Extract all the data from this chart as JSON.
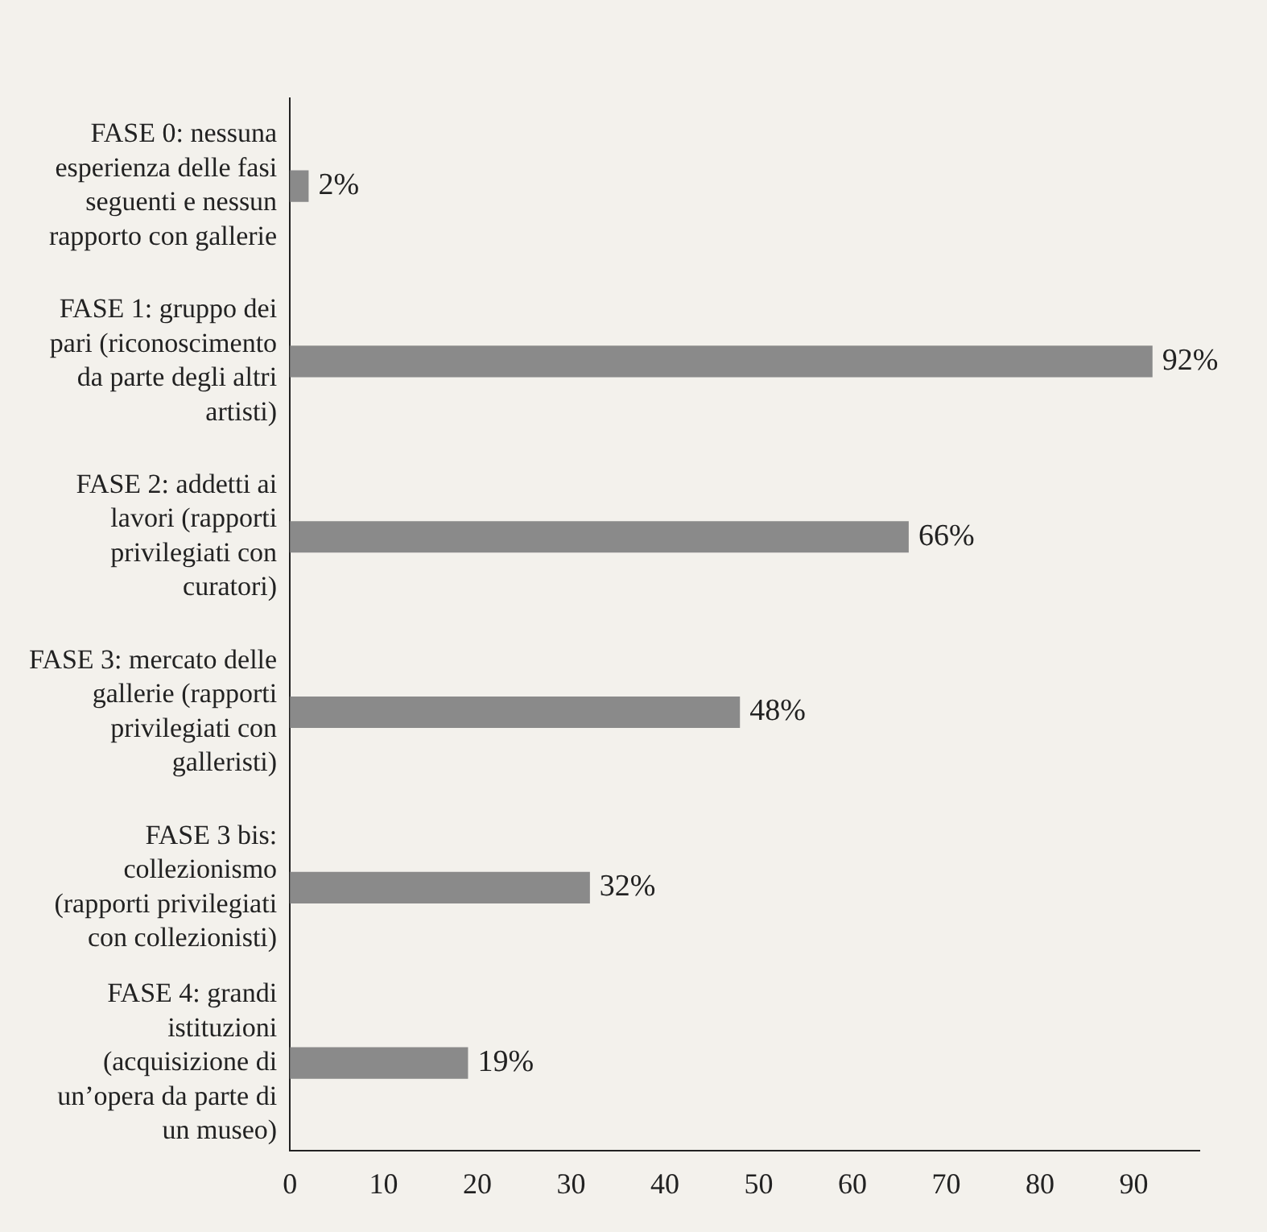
{
  "chart_data": {
    "type": "bar",
    "orientation": "horizontal",
    "categories": [
      "FASE 0: nessuna esperienza delle fasi seguenti e nessun rapporto con gallerie",
      "FASE 1: gruppo dei pari (riconoscimento da parte degli altri artisti)",
      "FASE 2: addetti ai lavori (rapporti privilegiati con curatori)",
      "FASE 3: mercato delle gallerie (rapporti privilegiati con galleristi)",
      "FASE 3 bis: collezionismo (rapporti privilegiati con collezionisti)",
      "FASE 4: grandi istituzioni (acquisizione di un’opera da parte di un museo)"
    ],
    "values": [
      2,
      92,
      66,
      48,
      32,
      19
    ],
    "value_labels": [
      "2%",
      "92%",
      "66%",
      "48%",
      "32%",
      "19%"
    ],
    "color": "#8a8a8a",
    "xlim": [
      0,
      97
    ],
    "xticks": [
      0,
      10,
      20,
      30,
      40,
      50,
      60,
      70,
      80,
      90
    ],
    "grid": false,
    "legend": false
  }
}
